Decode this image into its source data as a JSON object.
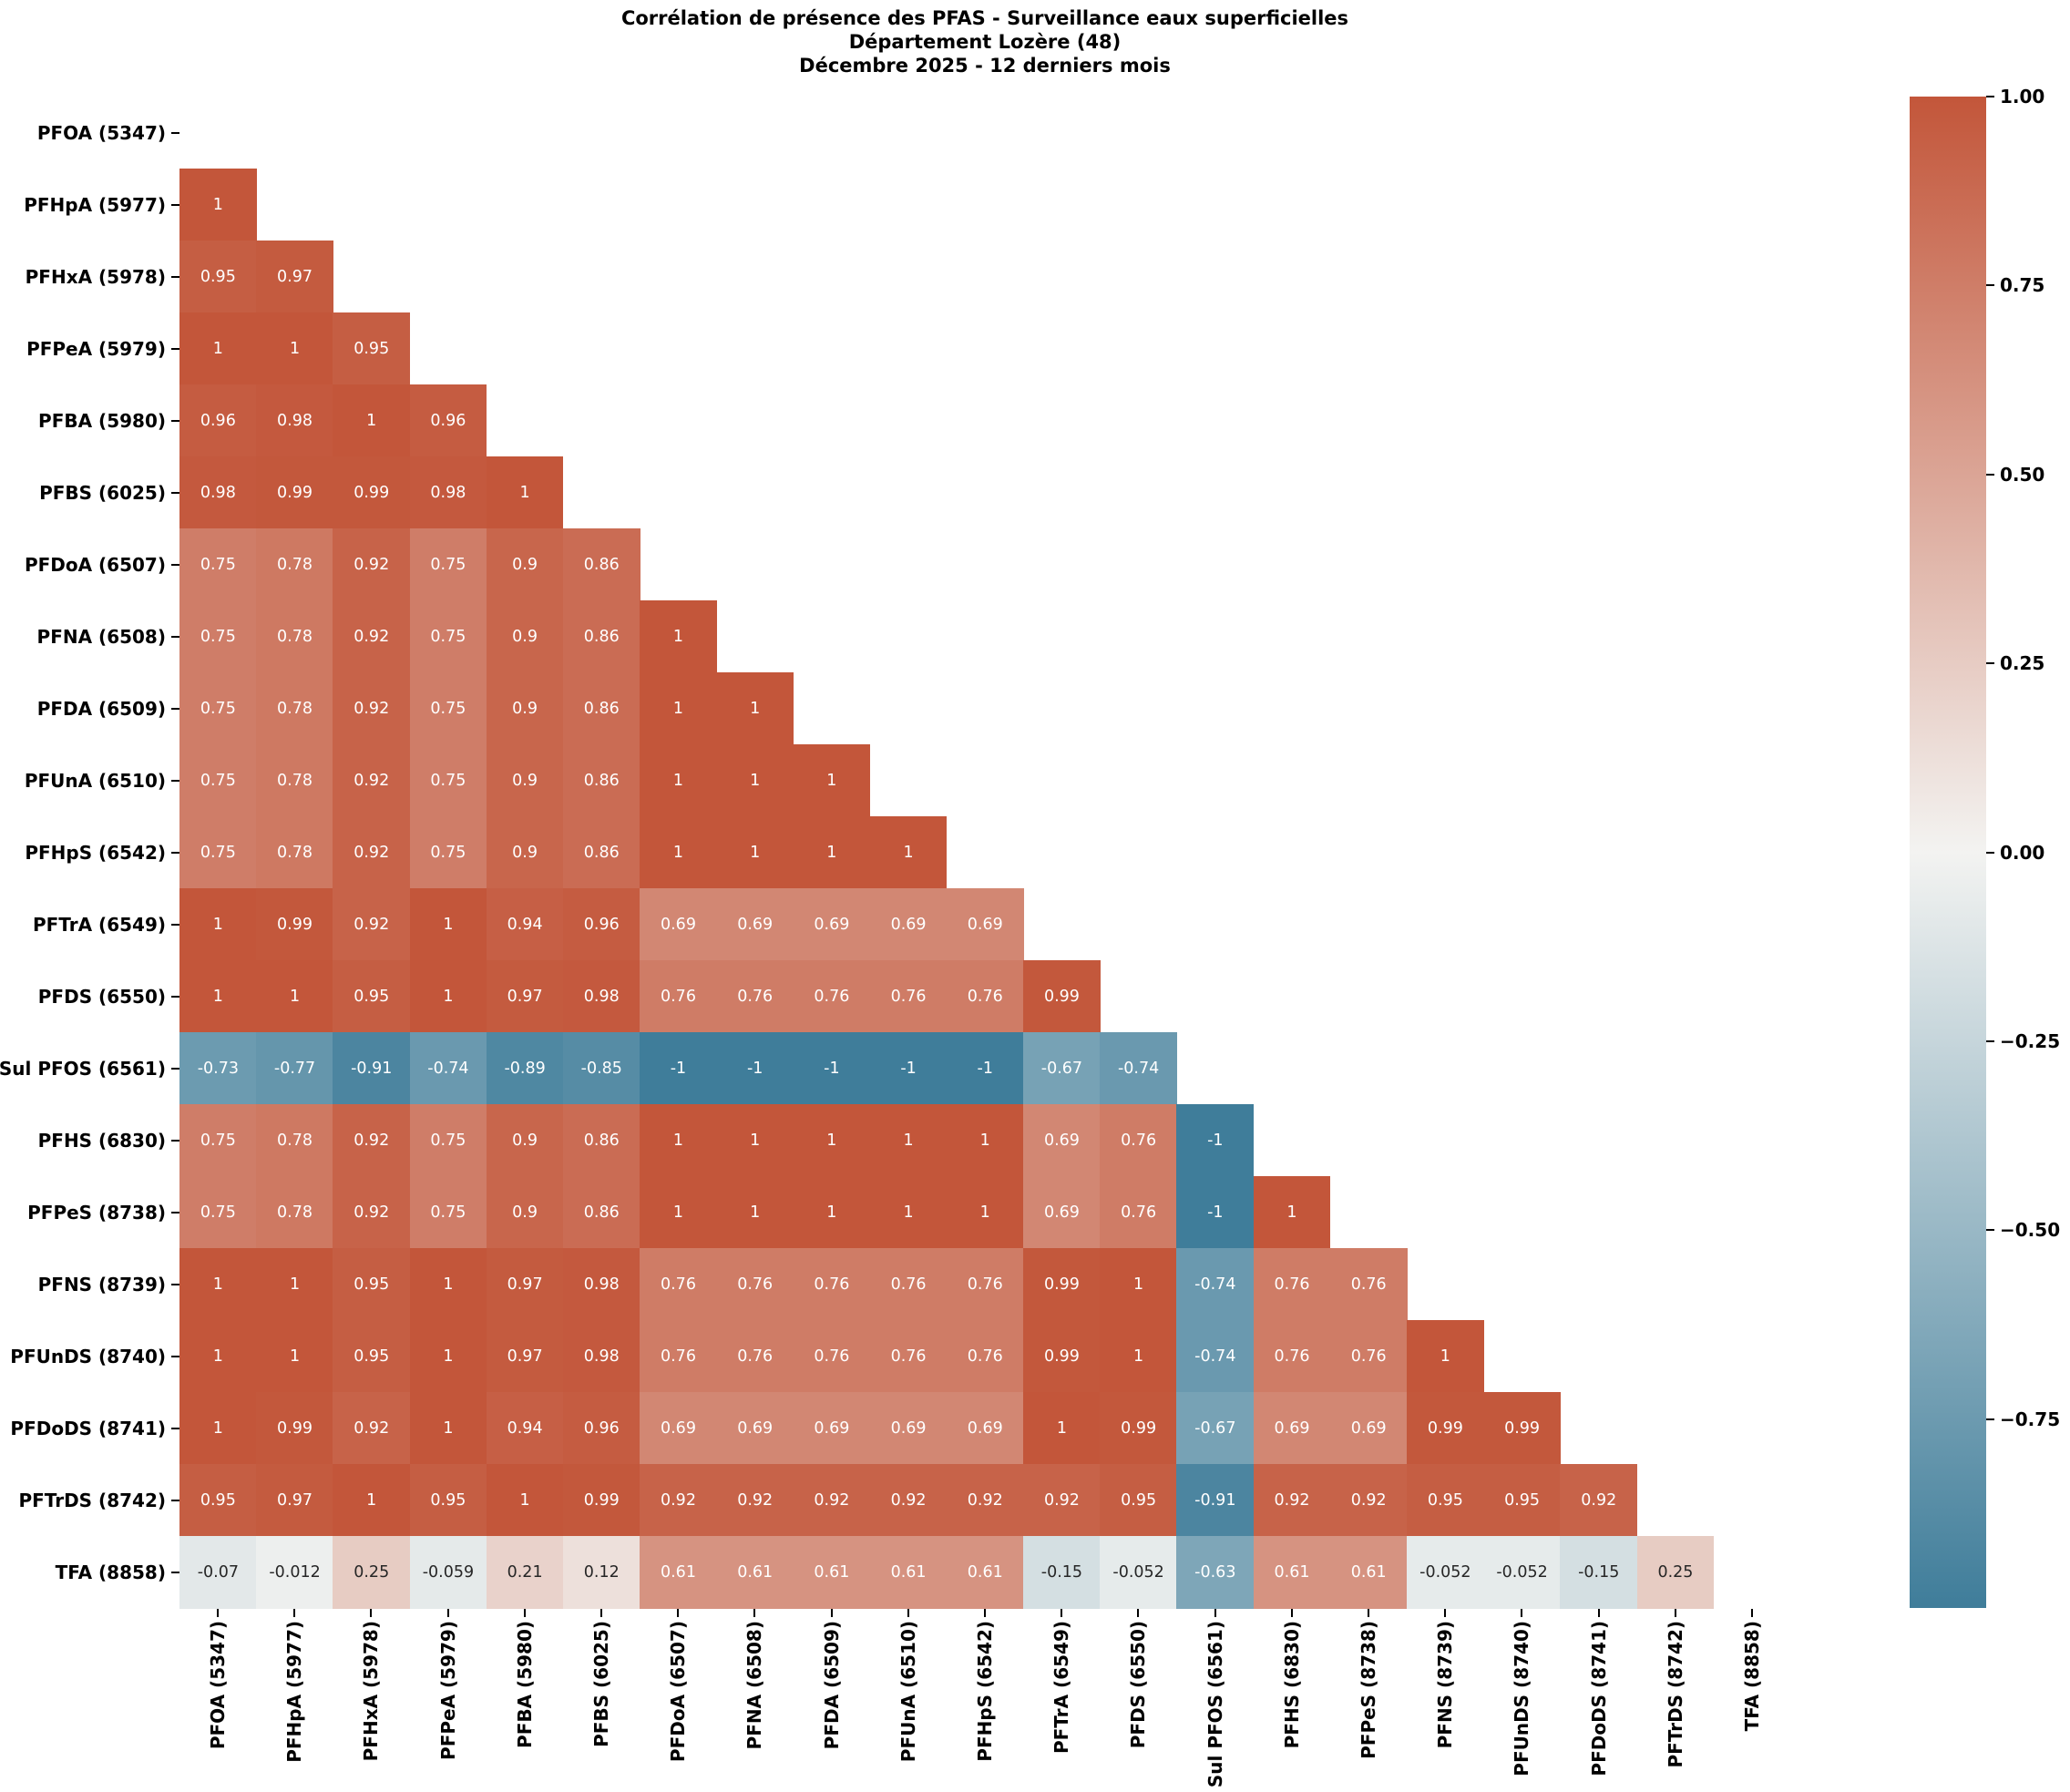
{
  "chart_data": {
    "type": "heatmap",
    "title_lines": [
      "Corrélation de présence des PFAS - Surveillance eaux superficielles",
      "Département Lozère (48)",
      "Décembre 2025 - 12 derniers mois"
    ],
    "labels": [
      "PFOA (5347)",
      "PFHpA (5977)",
      "PFHxA (5978)",
      "PFPeA (5979)",
      "PFBA (5980)",
      "PFBS (6025)",
      "PFDoA (6507)",
      "PFNA (6508)",
      "PFDA (6509)",
      "PFUnA (6510)",
      "PFHpS (6542)",
      "PFTrA (6549)",
      "PFDS (6550)",
      "Sul PFOS (6561)",
      "PFHS (6830)",
      "PFPeS (8738)",
      "PFNS (8739)",
      "PFUnDS (8740)",
      "PFDoDS (8741)",
      "PFTrDS (8742)",
      "TFA (8858)"
    ],
    "mask": "upper-triangle-and-diagonal",
    "matrix_lower": [
      [],
      [
        1
      ],
      [
        0.95,
        0.97
      ],
      [
        1,
        1,
        0.95
      ],
      [
        0.96,
        0.98,
        1,
        0.96
      ],
      [
        0.98,
        0.99,
        0.99,
        0.98,
        1
      ],
      [
        0.75,
        0.78,
        0.92,
        0.75,
        0.9,
        0.86
      ],
      [
        0.75,
        0.78,
        0.92,
        0.75,
        0.9,
        0.86,
        1
      ],
      [
        0.75,
        0.78,
        0.92,
        0.75,
        0.9,
        0.86,
        1,
        1
      ],
      [
        0.75,
        0.78,
        0.92,
        0.75,
        0.9,
        0.86,
        1,
        1,
        1
      ],
      [
        0.75,
        0.78,
        0.92,
        0.75,
        0.9,
        0.86,
        1,
        1,
        1,
        1
      ],
      [
        1,
        0.99,
        0.92,
        1,
        0.94,
        0.96,
        0.69,
        0.69,
        0.69,
        0.69,
        0.69
      ],
      [
        1,
        1,
        0.95,
        1,
        0.97,
        0.98,
        0.76,
        0.76,
        0.76,
        0.76,
        0.76,
        0.99
      ],
      [
        -0.73,
        -0.77,
        -0.91,
        -0.74,
        -0.89,
        -0.85,
        -1,
        -1,
        -1,
        -1,
        -1,
        -0.67,
        -0.74
      ],
      [
        0.75,
        0.78,
        0.92,
        0.75,
        0.9,
        0.86,
        1,
        1,
        1,
        1,
        1,
        0.69,
        0.76,
        -1
      ],
      [
        0.75,
        0.78,
        0.92,
        0.75,
        0.9,
        0.86,
        1,
        1,
        1,
        1,
        1,
        0.69,
        0.76,
        -1,
        1
      ],
      [
        1,
        1,
        0.95,
        1,
        0.97,
        0.98,
        0.76,
        0.76,
        0.76,
        0.76,
        0.76,
        0.99,
        1,
        -0.74,
        0.76,
        0.76
      ],
      [
        1,
        1,
        0.95,
        1,
        0.97,
        0.98,
        0.76,
        0.76,
        0.76,
        0.76,
        0.76,
        0.99,
        1,
        -0.74,
        0.76,
        0.76,
        1
      ],
      [
        1,
        0.99,
        0.92,
        1,
        0.94,
        0.96,
        0.69,
        0.69,
        0.69,
        0.69,
        0.69,
        1,
        0.99,
        -0.67,
        0.69,
        0.69,
        0.99,
        0.99
      ],
      [
        0.95,
        0.97,
        1,
        0.95,
        1,
        0.99,
        0.92,
        0.92,
        0.92,
        0.92,
        0.92,
        0.92,
        0.95,
        -0.91,
        0.92,
        0.92,
        0.95,
        0.95,
        0.92
      ],
      [
        -0.07,
        -0.012,
        0.25,
        -0.059,
        0.21,
        0.12,
        0.61,
        0.61,
        0.61,
        0.61,
        0.61,
        -0.15,
        -0.052,
        -0.63,
        0.61,
        0.61,
        -0.052,
        -0.052,
        -0.15,
        0.25
      ]
    ],
    "value_range": [
      -1,
      1
    ],
    "colorbar": {
      "position": "right",
      "tick_labels": [
        "1.00",
        "0.75",
        "0.50",
        "0.25",
        "0.00",
        "−0.25",
        "−0.50",
        "−0.75"
      ],
      "tick_values": [
        1,
        0.75,
        0.5,
        0.25,
        0,
        -0.25,
        -0.5,
        -0.75
      ]
    },
    "colors": {
      "positive_max": "#c3563a",
      "center": "#f3f3f1",
      "negative_min": "#3f7d9a",
      "annotation_on_dark": "#ffffff",
      "annotation_on_light": "#262626",
      "background": "#ffffff"
    }
  }
}
